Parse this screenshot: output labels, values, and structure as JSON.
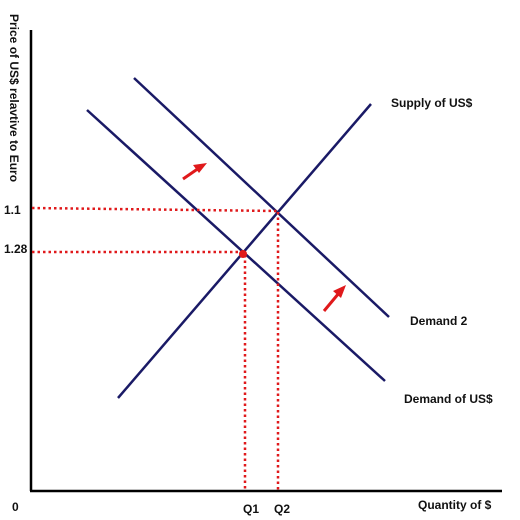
{
  "diagram": {
    "y_axis_title": "Price of US$ relavtive to Euro",
    "x_axis_title": "Quantity of $",
    "origin_label": "0",
    "price_labels": {
      "p_high": "1.1",
      "p_low": "1.28"
    },
    "quantity_labels": {
      "q1": "Q1",
      "q2": "Q2"
    },
    "curve_labels": {
      "supply": "Supply of US$",
      "demand_shifted": "Demand 2",
      "demand": "Demand of US$"
    },
    "colors": {
      "curve": "#1a1a66",
      "guide": "#e0191b",
      "axis": "#000000",
      "text": "#111111"
    }
  }
}
